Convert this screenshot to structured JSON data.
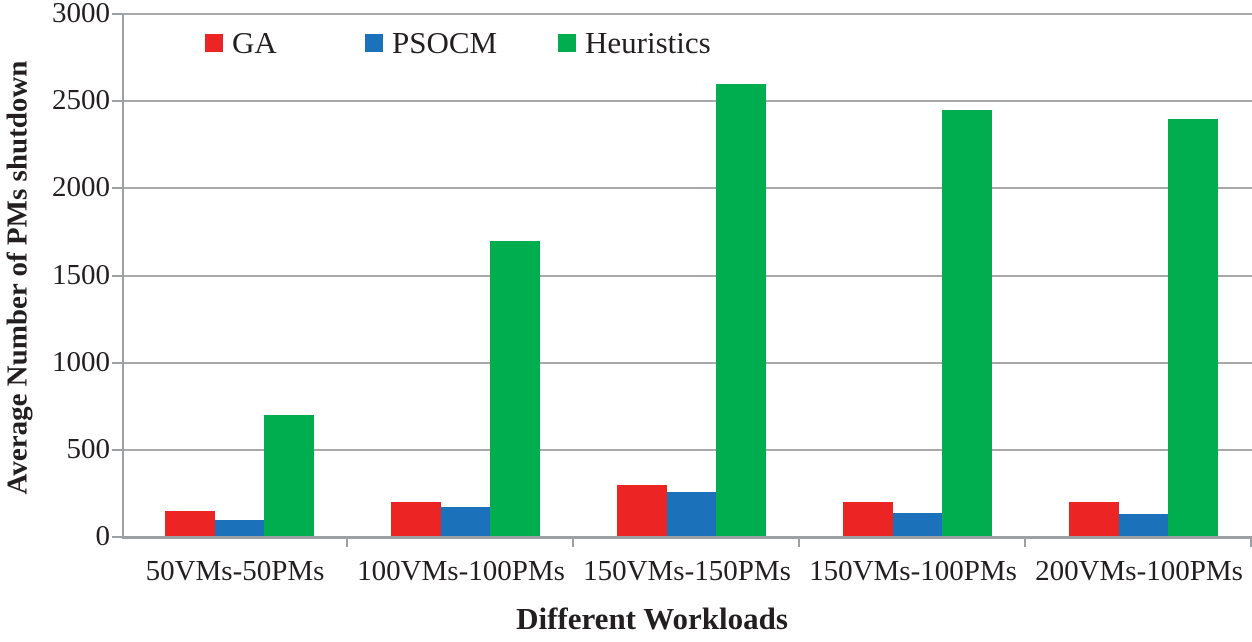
{
  "chart_data": {
    "type": "bar",
    "title": "",
    "xlabel": "Different Workloads",
    "ylabel": "Average Number of PMs shutdown",
    "categories": [
      "50VMs-50PMs",
      "100VMs-100PMs",
      "150VMs-150PMs",
      "150VMs-100PMs",
      "200VMs-100PMs"
    ],
    "series": [
      {
        "name": "GA",
        "color": "#ED2424",
        "values": [
          150,
          200,
          300,
          200,
          200
        ]
      },
      {
        "name": "PSOCM",
        "color": "#1B72BA",
        "values": [
          100,
          170,
          260,
          140,
          130
        ]
      },
      {
        "name": "Heuristics",
        "color": "#00AD4F",
        "values": [
          700,
          1700,
          2600,
          2450,
          2400
        ]
      }
    ],
    "ylim": [
      0,
      3000
    ],
    "ytick_step": 500,
    "yticks": [
      0,
      500,
      1000,
      1500,
      2000,
      2500,
      3000
    ],
    "grid": true,
    "legend_position": "top-inside",
    "grid_color": "#A8A8A8",
    "axis_color": "#9DA0A3",
    "text_color": "#231F20"
  }
}
